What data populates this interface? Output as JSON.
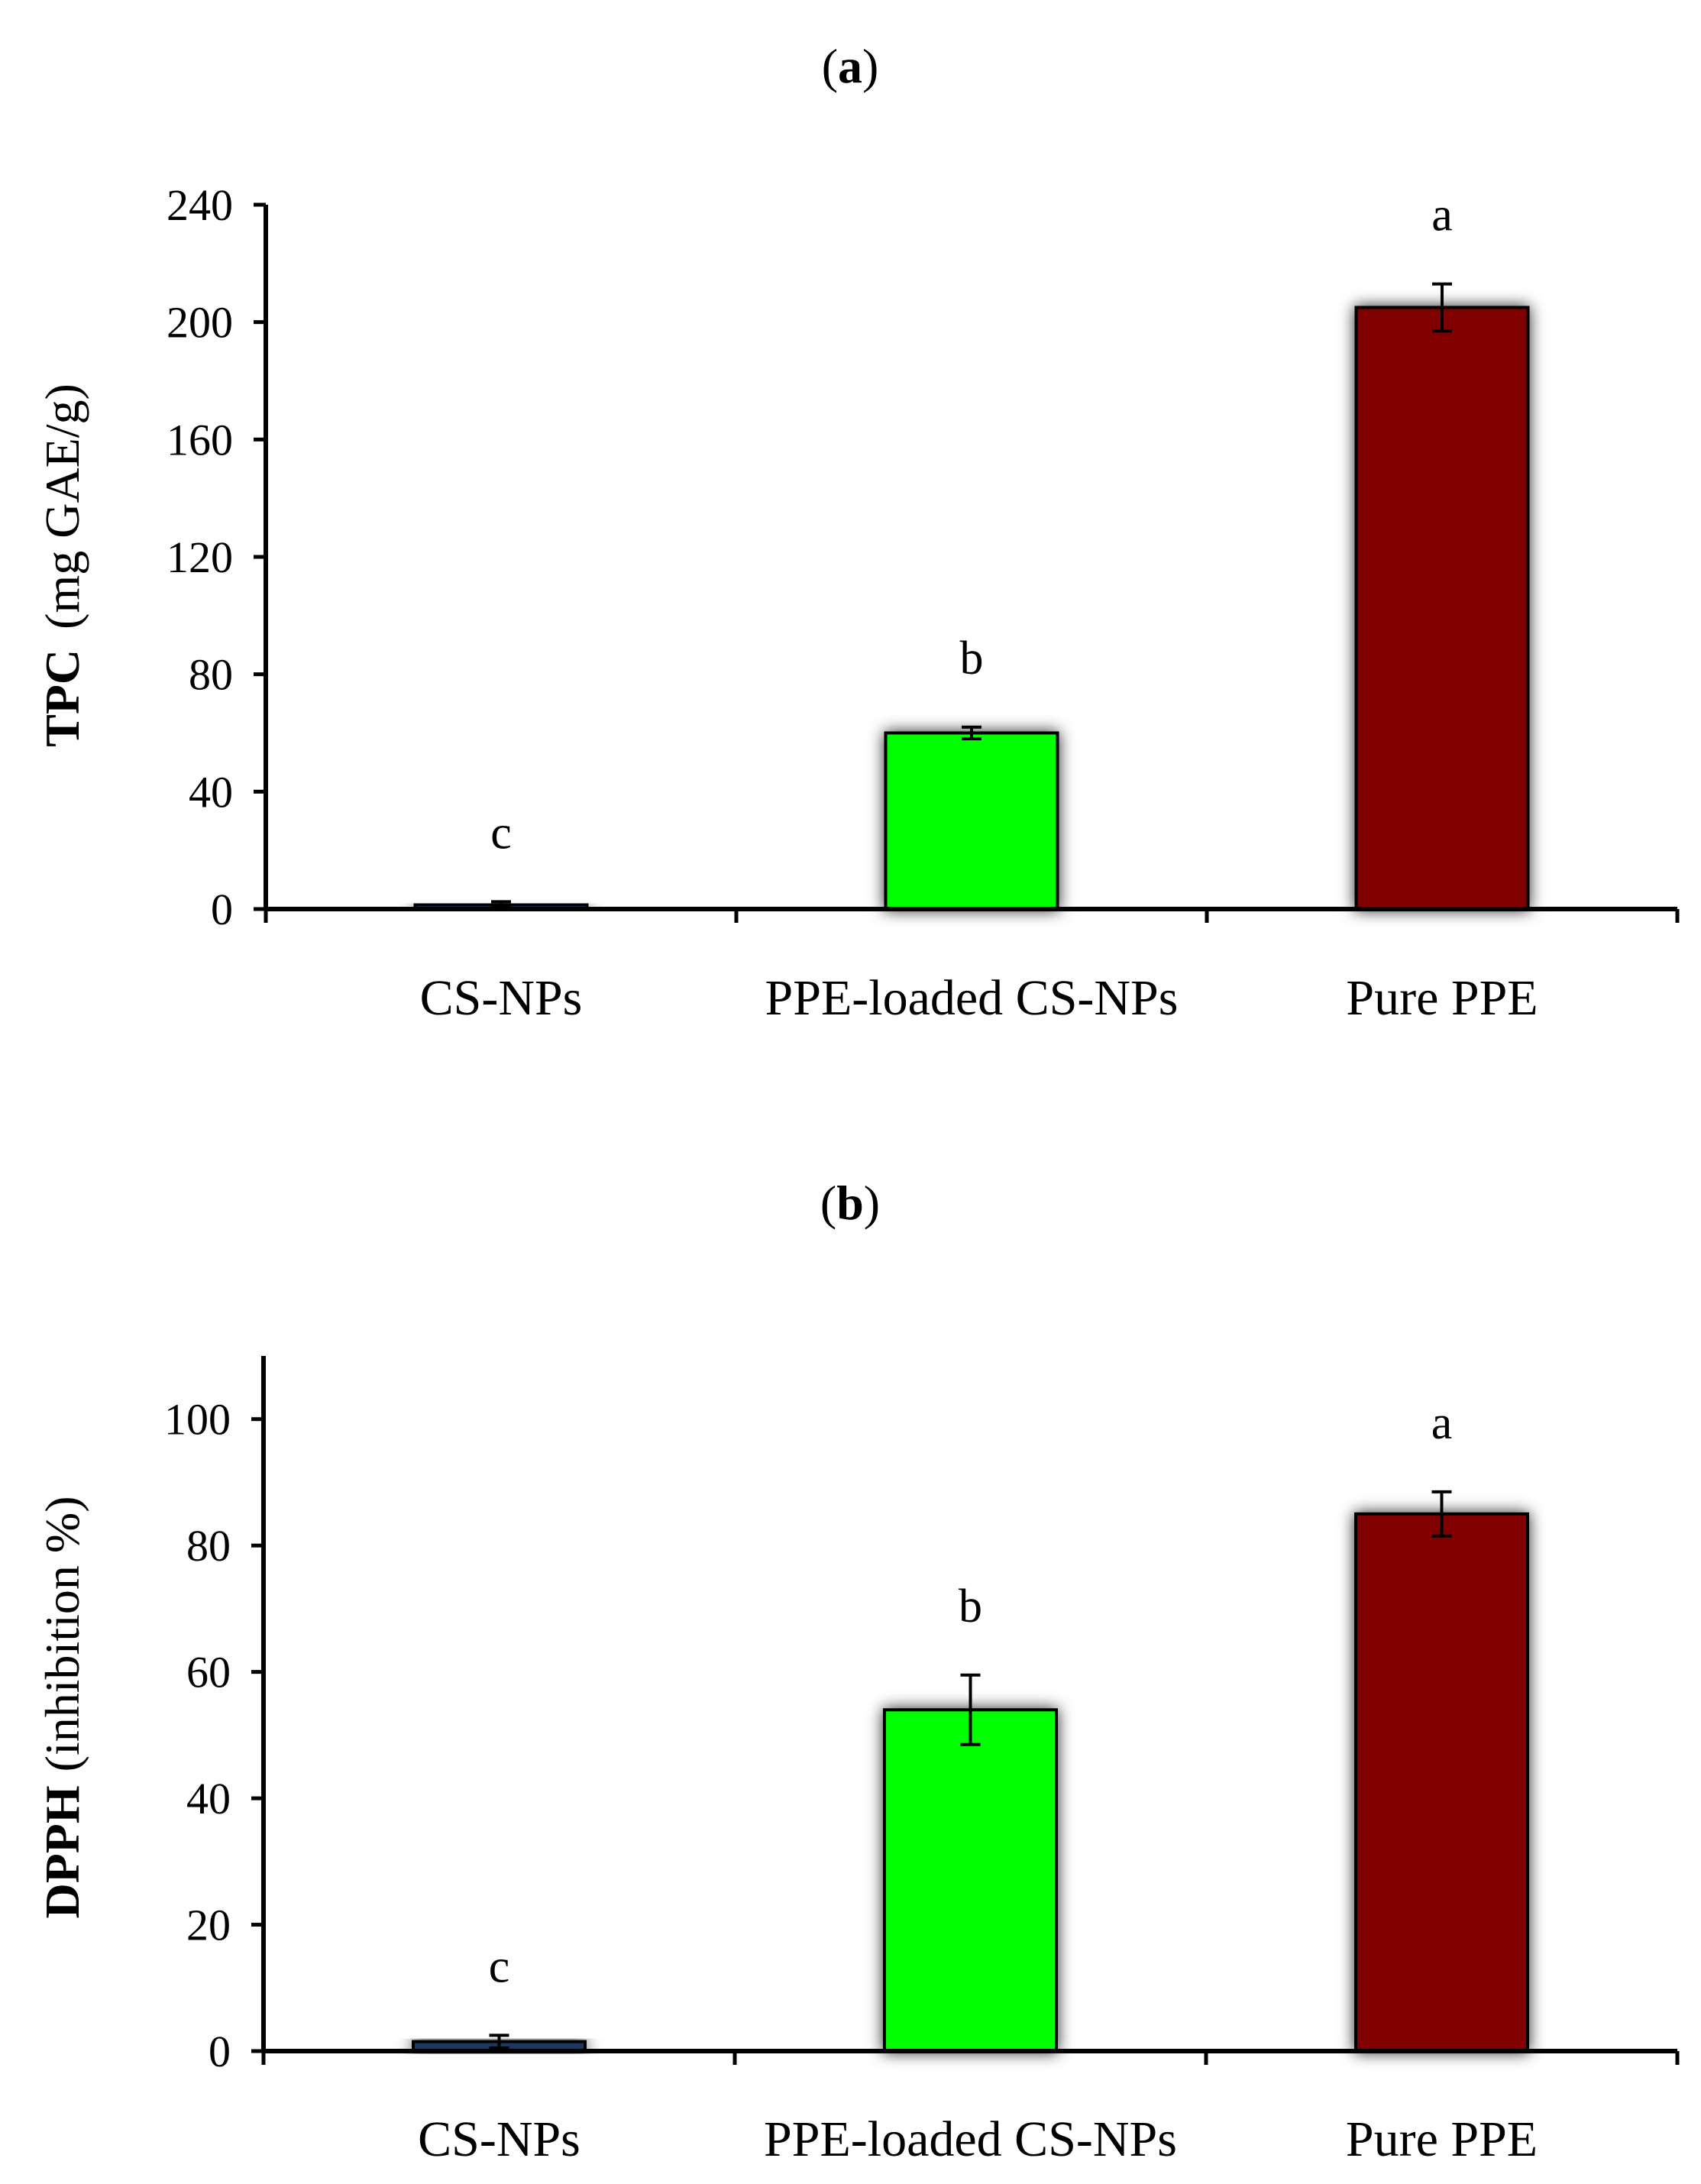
{
  "chart_data": [
    {
      "type": "bar",
      "title": "(a)",
      "title_letter": "a",
      "ylabel_main": "TPC",
      "ylabel_unit": "(mg GAE/g)",
      "ylim": [
        0,
        240
      ],
      "yticks": [
        0,
        40,
        80,
        120,
        160,
        200,
        240
      ],
      "categories": [
        "CS-NPs",
        "PPE-loaded CS-NPs",
        "Pure PPE"
      ],
      "values": [
        1.5,
        60,
        205
      ],
      "errors": [
        1,
        2,
        8
      ],
      "significance": [
        "c",
        "b",
        "a"
      ],
      "colors": [
        "#1f3864",
        "#00ff00",
        "#800000"
      ]
    },
    {
      "type": "bar",
      "title": "(b)",
      "title_letter": "b",
      "ylabel_main": "DPPH",
      "ylabel_unit": "(inhibition %)",
      "ylim": [
        0,
        110
      ],
      "yticks": [
        0,
        20,
        40,
        60,
        80,
        100
      ],
      "categories": [
        "CS-NPs",
        "PPE-loaded CS-NPs",
        "Pure PPE"
      ],
      "values": [
        1.5,
        54,
        85
      ],
      "errors": [
        1,
        5.5,
        3.5
      ],
      "significance": [
        "c",
        "b",
        "a"
      ],
      "colors": [
        "#1f3864",
        "#00ff00",
        "#800000"
      ]
    }
  ]
}
